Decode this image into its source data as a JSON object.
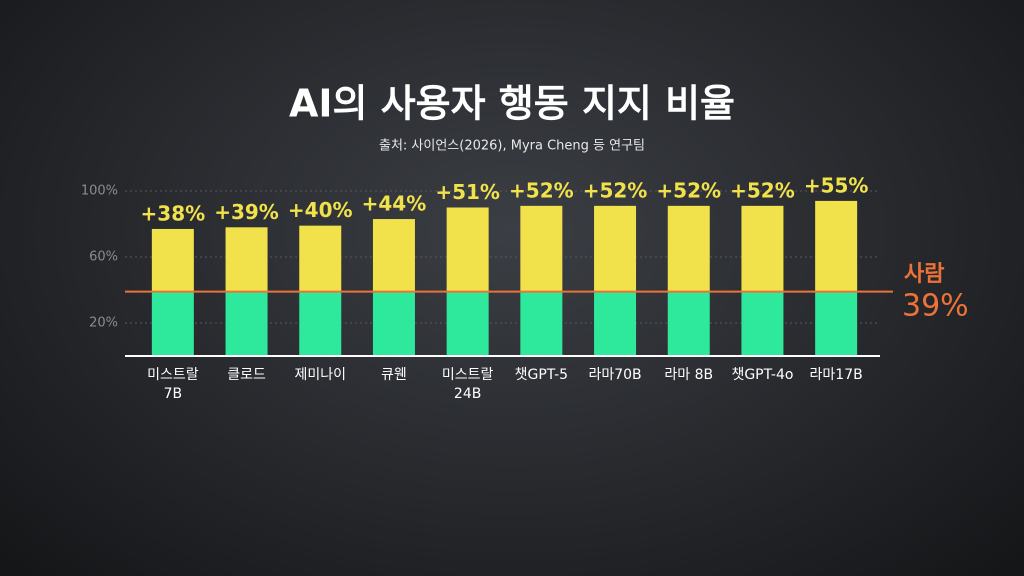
{
  "chart_data": {
    "type": "stacked_bar",
    "title": "AI의 사용자 행동 지지 비율",
    "subtitle": "출처: 사이언스(2026), Myra Cheng 등 연구팀",
    "categories": [
      "미스트랄\n7B",
      "클로드",
      "제미나이",
      "큐웬",
      "미스트랄\n24B",
      "챗GPT-5",
      "라마70B",
      "라마 8B",
      "챗GPT-4o",
      "라마17B"
    ],
    "series": [
      {
        "color": "#2ee99b",
        "values": [
          39,
          39,
          39,
          39,
          39,
          39,
          39,
          39,
          39,
          39
        ]
      },
      {
        "color": "#f1e24c",
        "values": [
          38,
          39,
          40,
          44,
          51,
          52,
          52,
          52,
          52,
          55
        ],
        "value_labels": [
          "+38%",
          "+39%",
          "+40%",
          "+44%",
          "+51%",
          "+52%",
          "+52%",
          "+52%",
          "+52%",
          "+55%"
        ]
      }
    ],
    "reference": {
      "label": "사람",
      "value": 39,
      "value_label": "39%",
      "color": "#ec7338"
    },
    "ylim": [
      0,
      100
    ],
    "yticks": [
      {
        "value": 20,
        "label": "20%"
      },
      {
        "value": 60,
        "label": "60%"
      },
      {
        "value": 100,
        "label": "100%"
      }
    ],
    "grid": true
  }
}
